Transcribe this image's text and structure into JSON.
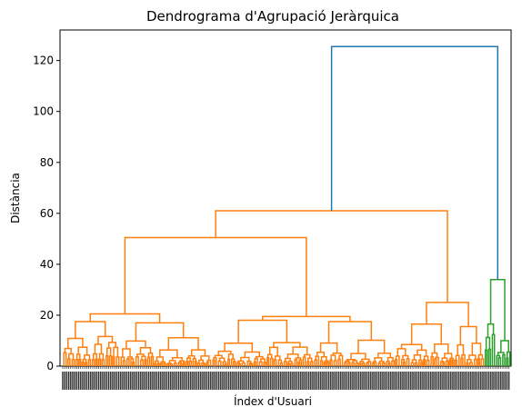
{
  "chart_data": {
    "type": "dendrogram",
    "title": "Dendrograma d'Agrupació Jeràrquica",
    "xlabel": "Índex d'Usuari",
    "ylabel": "Distància",
    "ylim": [
      0,
      132
    ],
    "yticks": [
      0,
      20,
      40,
      60,
      80,
      100,
      120
    ],
    "grid": false,
    "colors": {
      "root": "#1f77b4",
      "cluster_1": "#ff7f0e",
      "cluster_2": "#2ca02c"
    },
    "merges": [
      {
        "name": "root",
        "height": 125.5,
        "color": "root",
        "children": [
          "cluster_1_top",
          "cluster_2_top"
        ]
      },
      {
        "name": "cluster_1_top",
        "height": 61,
        "color": "cluster_1",
        "children": [
          "c1_left",
          "c1_right"
        ]
      },
      {
        "name": "c1_left",
        "height": 50.5,
        "color": "cluster_1",
        "children": [
          "c1_ll",
          "c1_lr"
        ]
      },
      {
        "name": "c1_ll",
        "height": 20.5,
        "color": "cluster_1",
        "children": [
          "c1_lll",
          "c1_llr"
        ]
      },
      {
        "name": "c1_lll",
        "height": 17.5,
        "color": "cluster_1"
      },
      {
        "name": "c1_llr",
        "height": 17.0,
        "color": "cluster_1"
      },
      {
        "name": "c1_lr",
        "height": 19.5,
        "color": "cluster_1",
        "children": [
          "c1_lrl",
          "c1_lrr"
        ]
      },
      {
        "name": "c1_lrl",
        "height": 18.0,
        "color": "cluster_1"
      },
      {
        "name": "c1_lrr",
        "height": 17.5,
        "color": "cluster_1"
      },
      {
        "name": "c1_right",
        "height": 25.0,
        "color": "cluster_1",
        "children": [
          "c1_rl",
          "c1_rr"
        ]
      },
      {
        "name": "c1_rl",
        "height": 16.5,
        "color": "cluster_1"
      },
      {
        "name": "c1_rr",
        "height": 15.5,
        "color": "cluster_1"
      },
      {
        "name": "cluster_2_top",
        "height": 34.0,
        "color": "cluster_2",
        "children": [
          "c2_l",
          "c2_r"
        ]
      },
      {
        "name": "c2_l",
        "height": 16.5,
        "color": "cluster_2"
      },
      {
        "name": "c2_r",
        "height": 10.0,
        "color": "cluster_2"
      }
    ]
  }
}
